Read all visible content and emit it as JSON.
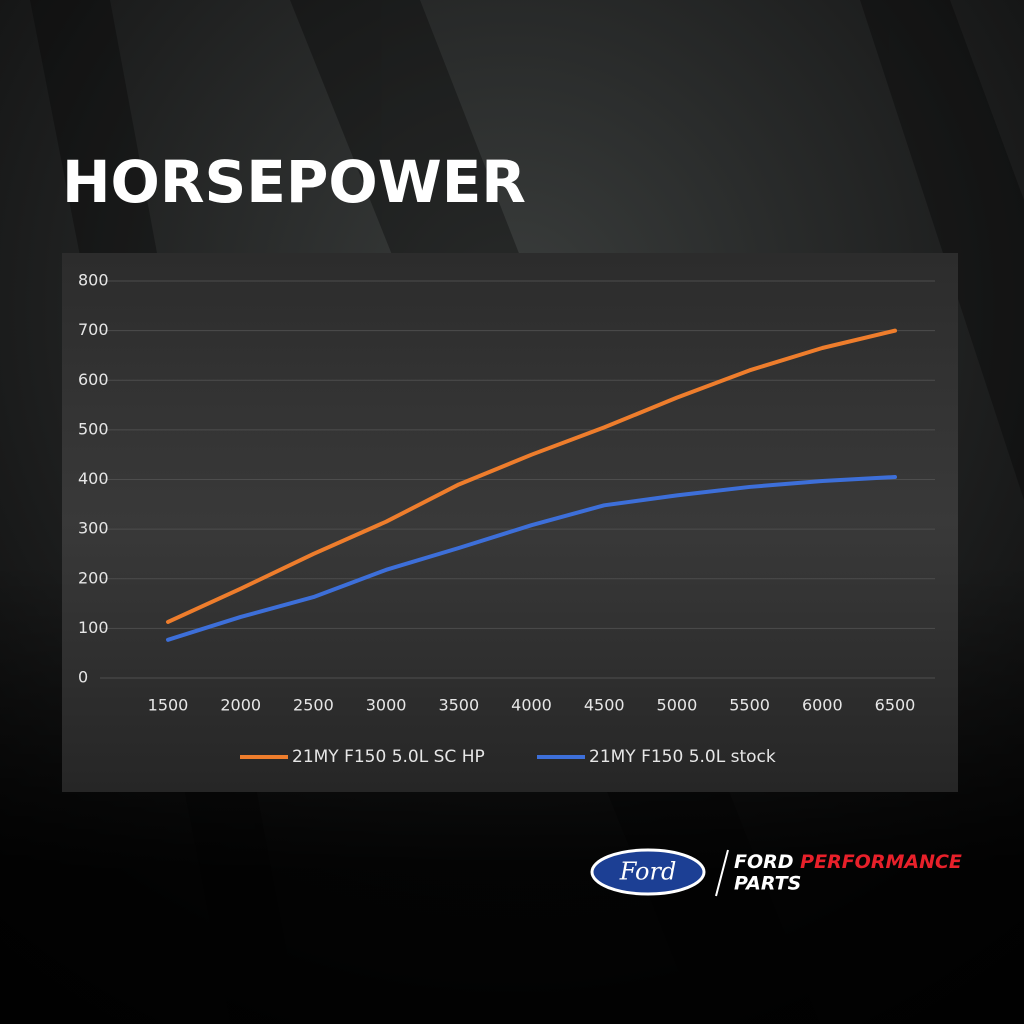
{
  "chart_data": {
    "type": "line",
    "title": "HORSEPOWER",
    "x": [
      1500,
      2000,
      2500,
      3000,
      3500,
      4000,
      4500,
      5000,
      5500,
      6000,
      6500
    ],
    "xlim": [
      1500,
      6500
    ],
    "xticks": [
      1500,
      2000,
      2500,
      3000,
      3500,
      4000,
      4500,
      5000,
      5500,
      6000,
      6500
    ],
    "ylim": [
      0,
      800
    ],
    "yticks": [
      0,
      100,
      200,
      300,
      400,
      500,
      600,
      700,
      800
    ],
    "grid": true,
    "legend": "bottom",
    "series": [
      {
        "name": "21MY F150 5.0L SC HP",
        "color": "#ee7d2c",
        "values": [
          113,
          180,
          250,
          315,
          390,
          450,
          505,
          565,
          620,
          665,
          700
        ]
      },
      {
        "name": "21MY F150 5.0L stock",
        "color": "#3d6fd9",
        "values": [
          77,
          123,
          163,
          218,
          262,
          308,
          348,
          368,
          385,
          397,
          405
        ]
      }
    ]
  },
  "branding": {
    "oval": "Ford",
    "line1a": "FORD",
    "line1b": "PERFORMANCE",
    "line2": "PARTS"
  }
}
